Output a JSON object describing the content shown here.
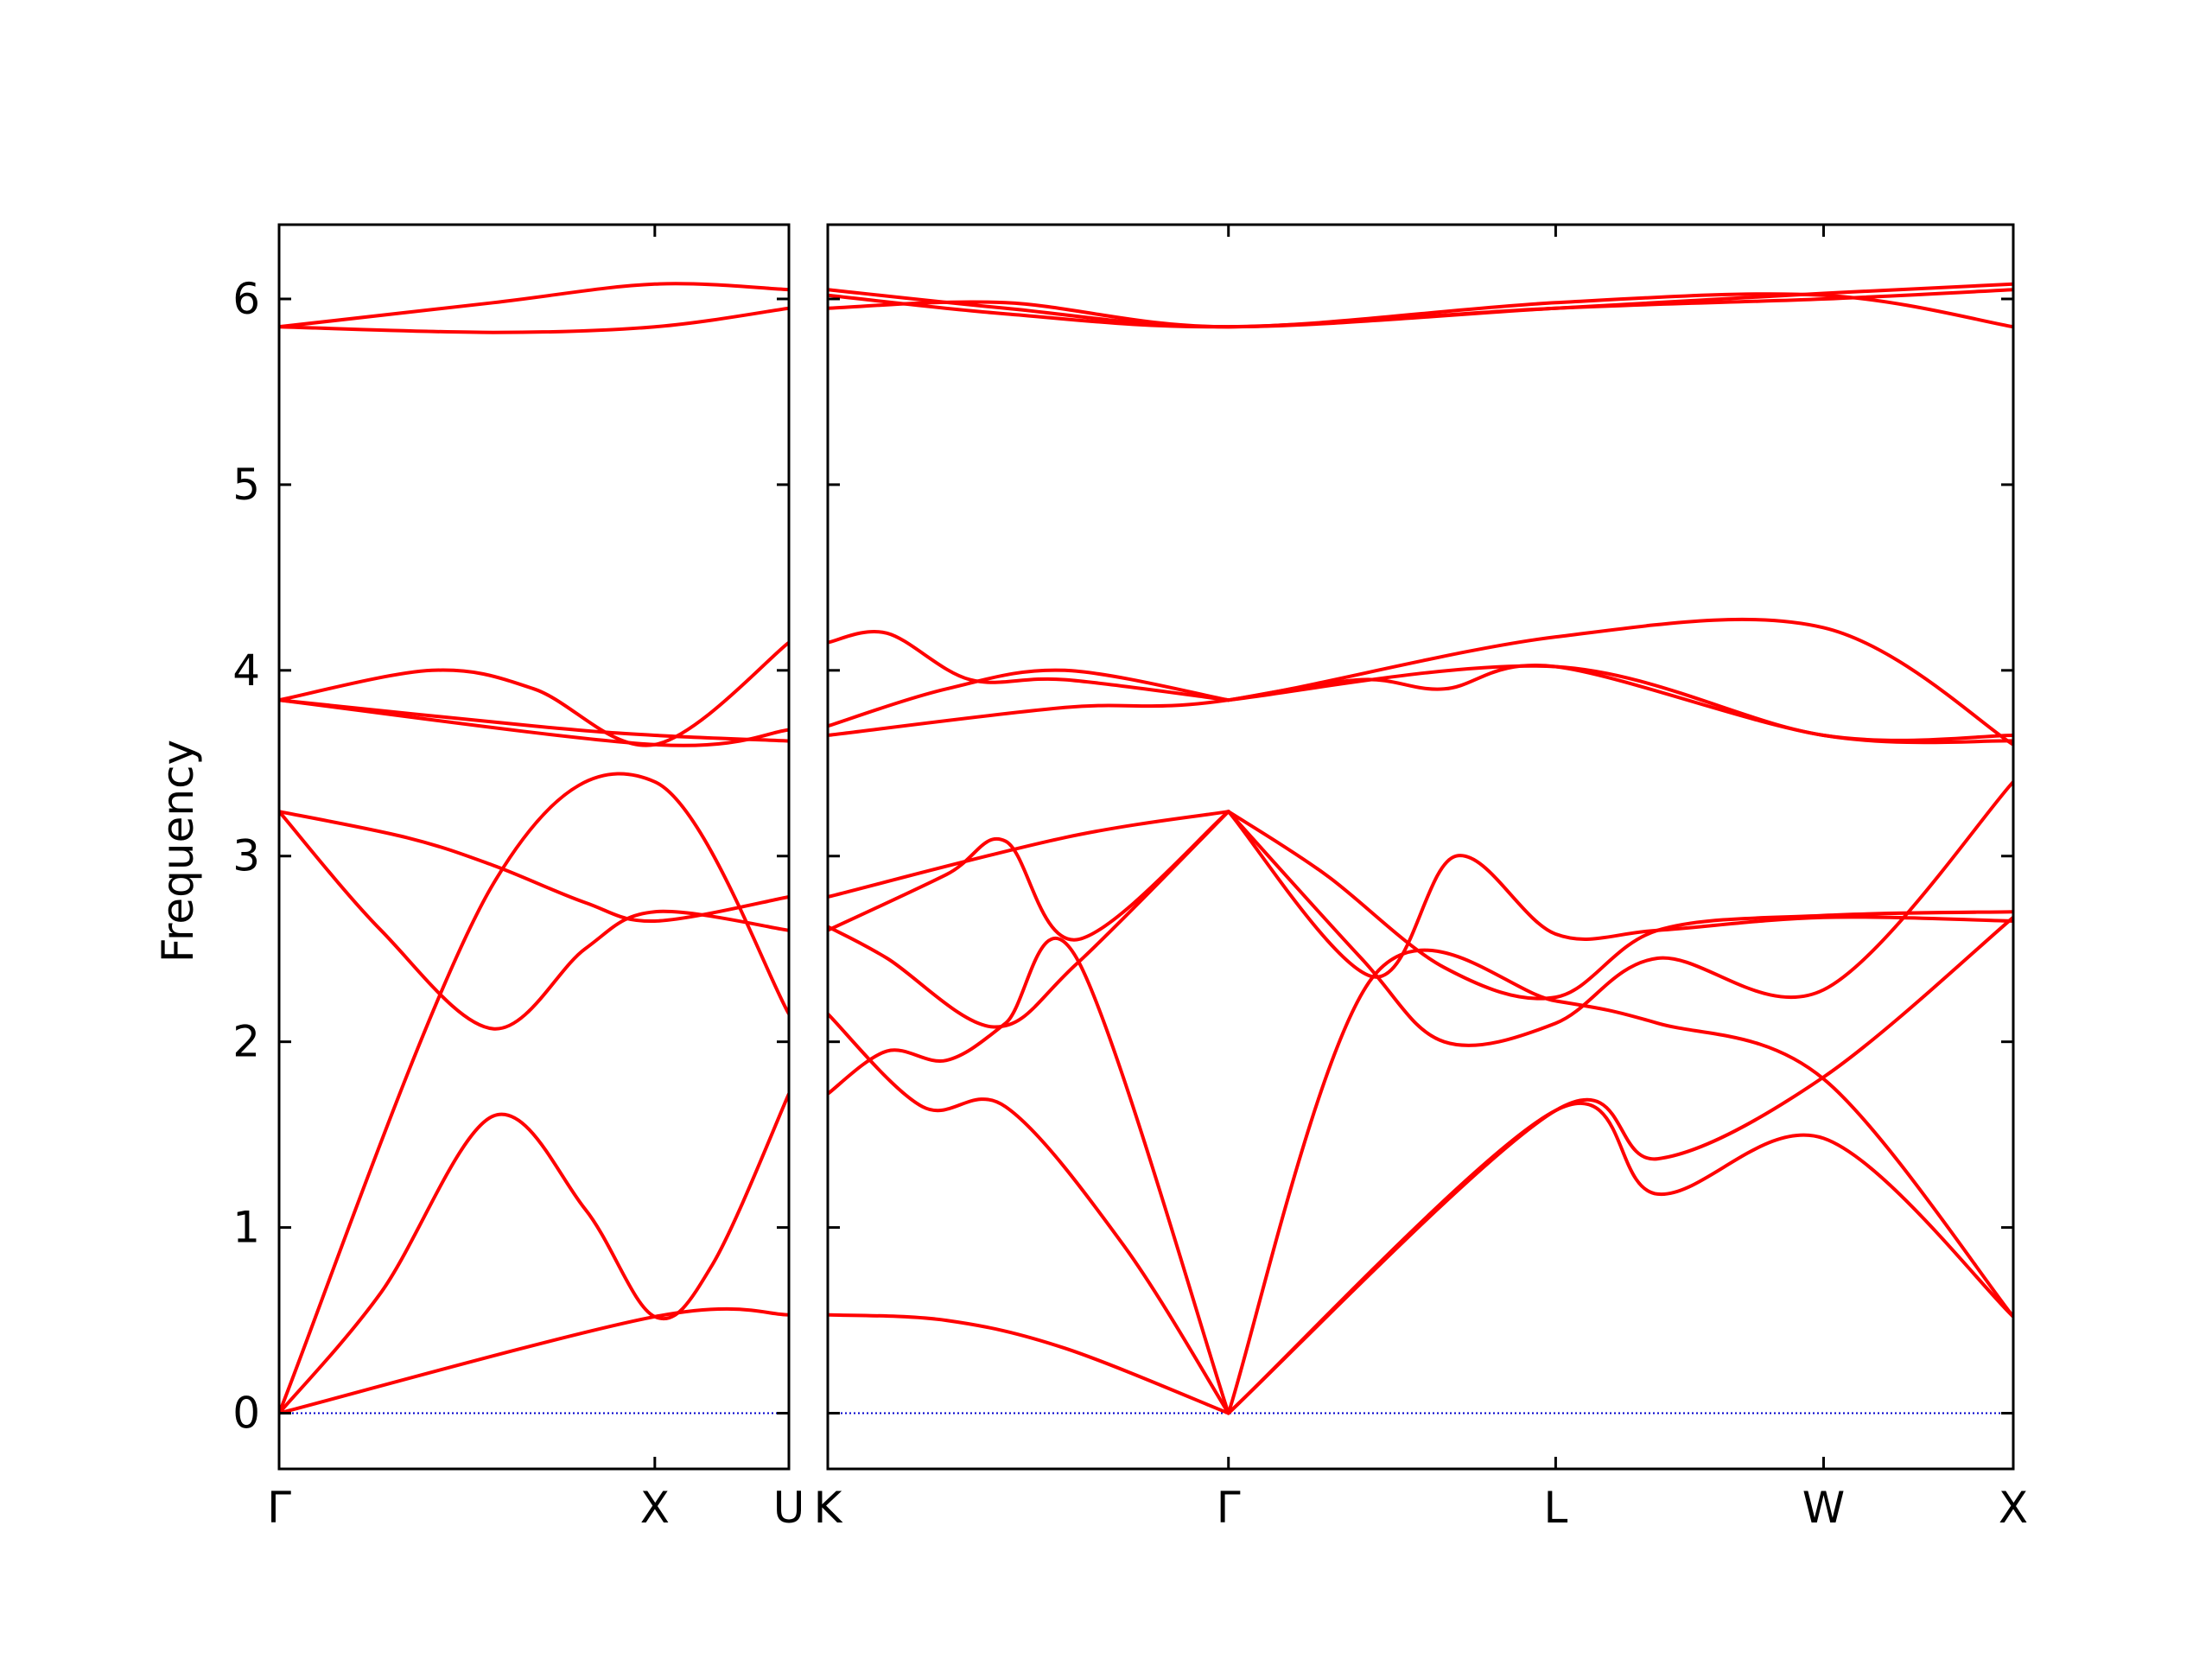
{
  "chart_data": {
    "type": "line",
    "ylabel": "Frequency",
    "ylim": [
      -0.3,
      6.4
    ],
    "yticks": [
      0,
      1,
      2,
      3,
      4,
      5,
      6
    ],
    "grid": false,
    "line_color": "#ff0000",
    "zero_line_color": "#0000cc",
    "panels": [
      {
        "id": "left",
        "x_ticks": [
          "Γ",
          "X",
          "U"
        ],
        "x_tick_positions": [
          0,
          0.737,
          1.0
        ],
        "bands": [
          {
            "x": [
              0,
              0.2,
              0.42,
              0.6,
              0.737,
              0.85,
              1.0
            ],
            "y": [
              0,
              0.65,
              1.6,
              1.1,
              0.52,
              0.8,
              1.72
            ]
          },
          {
            "x": [
              0,
              0.42,
              0.737,
              1.0
            ],
            "y": [
              0,
              2.85,
              3.4,
              2.15
            ]
          },
          {
            "x": [
              0,
              0.2,
              0.42,
              0.6,
              0.737,
              1.0
            ],
            "y": [
              3.24,
              2.6,
              2.07,
              2.5,
              2.7,
              2.6
            ]
          },
          {
            "x": [
              0,
              0.25,
              0.42,
              0.6,
              0.737,
              1.0
            ],
            "y": [
              3.24,
              3.1,
              2.95,
              2.75,
              2.65,
              2.78
            ]
          },
          {
            "x": [
              0,
              0.737,
              1.0
            ],
            "y": [
              0.0,
              0.52,
              0.53
            ]
          },
          {
            "x": [
              0,
              0.3,
              0.5,
              0.737,
              1.0
            ],
            "y": [
              3.84,
              4.0,
              3.9,
              3.6,
              4.15
            ]
          },
          {
            "x": [
              0,
              0.5,
              0.737,
              1.0
            ],
            "y": [
              3.84,
              3.7,
              3.65,
              3.62
            ]
          },
          {
            "x": [
              0,
              0.737,
              1.0
            ],
            "y": [
              3.84,
              3.6,
              3.68
            ]
          },
          {
            "x": [
              0,
              0.42,
              0.737,
              1.0
            ],
            "y": [
              5.85,
              5.98,
              6.08,
              6.05
            ]
          },
          {
            "x": [
              0,
              0.42,
              0.737,
              1.0
            ],
            "y": [
              5.85,
              5.82,
              5.85,
              5.95
            ]
          }
        ]
      },
      {
        "id": "right",
        "x_ticks": [
          "K",
          "Γ",
          "L",
          "W",
          "X"
        ],
        "x_tick_positions": [
          0,
          0.338,
          0.614,
          0.84,
          1.0
        ],
        "bands": [
          {
            "x": [
              0,
              0.1,
              0.2,
              0.338
            ],
            "y": [
              0.53,
              0.5,
              0.35,
              0.0
            ]
          },
          {
            "x": [
              0,
              0.05,
              0.1,
              0.15,
              0.21,
              0.338
            ],
            "y": [
              1.72,
              1.95,
              1.9,
              2.1,
              2.45,
              0.0
            ]
          },
          {
            "x": [
              0,
              0.08,
              0.15,
              0.25,
              0.338
            ],
            "y": [
              2.15,
              1.65,
              1.65,
              0.9,
              0.0
            ]
          },
          {
            "x": [
              0,
              0.05,
              0.14,
              0.21,
              0.338
            ],
            "y": [
              2.62,
              2.45,
              2.08,
              2.42,
              3.24
            ]
          },
          {
            "x": [
              0,
              0.1,
              0.15,
              0.21,
              0.338
            ],
            "y": [
              2.6,
              2.9,
              3.08,
              2.55,
              3.24
            ]
          },
          {
            "x": [
              0,
              0.2,
              0.338
            ],
            "y": [
              2.78,
              3.1,
              3.24
            ]
          },
          {
            "x": [
              0.338,
              0.45,
              0.52,
              0.614,
              0.7,
              0.84,
              1.0
            ],
            "y": [
              3.24,
              2.45,
              2.0,
              2.1,
              2.45,
              2.28,
              3.4
            ]
          },
          {
            "x": [
              0.338,
              0.42,
              0.52,
              0.614,
              0.7,
              0.84,
              1.0
            ],
            "y": [
              3.24,
              2.9,
              2.4,
              2.24,
              2.6,
              2.68,
              2.7
            ]
          },
          {
            "x": [
              0.338,
              0.46,
              0.53,
              0.614,
              0.7,
              0.84,
              1.0
            ],
            "y": [
              3.24,
              2.35,
              3.0,
              2.58,
              2.6,
              2.67,
              2.65
            ]
          },
          {
            "x": [
              0.338,
              0.614,
              0.7,
              0.84,
              1.0
            ],
            "y": [
              0.0,
              1.63,
              1.37,
              1.81,
              2.67
            ]
          },
          {
            "x": [
              0.338,
              0.614,
              0.7,
              0.84,
              1.0
            ],
            "y": [
              0.0,
              1.63,
              1.18,
              1.48,
              0.52
            ]
          },
          {
            "x": [
              0.338,
              0.46,
              0.614,
              0.7,
              0.84,
              1.0
            ],
            "y": [
              0.0,
              2.35,
              2.22,
              2.1,
              1.8,
              0.52
            ]
          },
          {
            "x": [
              0,
              0.05,
              0.12,
              0.2,
              0.338
            ],
            "y": [
              4.15,
              4.2,
              3.95,
              3.95,
              3.84
            ]
          },
          {
            "x": [
              0,
              0.1,
              0.2,
              0.338
            ],
            "y": [
              3.7,
              3.9,
              4.0,
              3.84
            ]
          },
          {
            "x": [
              0,
              0.2,
              0.338,
              0.614,
              0.84,
              1.0
            ],
            "y": [
              3.65,
              3.8,
              3.84,
              4.18,
              4.23,
              3.6
            ]
          },
          {
            "x": [
              0.338,
              0.45,
              0.52,
              0.614,
              0.84,
              1.0
            ],
            "y": [
              3.84,
              3.95,
              3.9,
              4.02,
              3.65,
              3.62
            ]
          },
          {
            "x": [
              0.338,
              0.614,
              0.84,
              1.0
            ],
            "y": [
              3.84,
              4.02,
              3.65,
              3.65
            ]
          },
          {
            "x": [
              0,
              0.15,
              0.338,
              0.614,
              0.84,
              1.0
            ],
            "y": [
              6.05,
              5.95,
              5.85,
              5.95,
              6.03,
              6.08
            ]
          },
          {
            "x": [
              0,
              0.15,
              0.338,
              0.614,
              0.84,
              1.0
            ],
            "y": [
              5.95,
              5.98,
              5.85,
              5.98,
              6.02,
              5.85
            ]
          },
          {
            "x": [
              0,
              0.15,
              0.338,
              0.614,
              0.84,
              1.0
            ],
            "y": [
              6.02,
              5.92,
              5.85,
              5.95,
              6.0,
              6.05
            ]
          }
        ]
      }
    ]
  }
}
